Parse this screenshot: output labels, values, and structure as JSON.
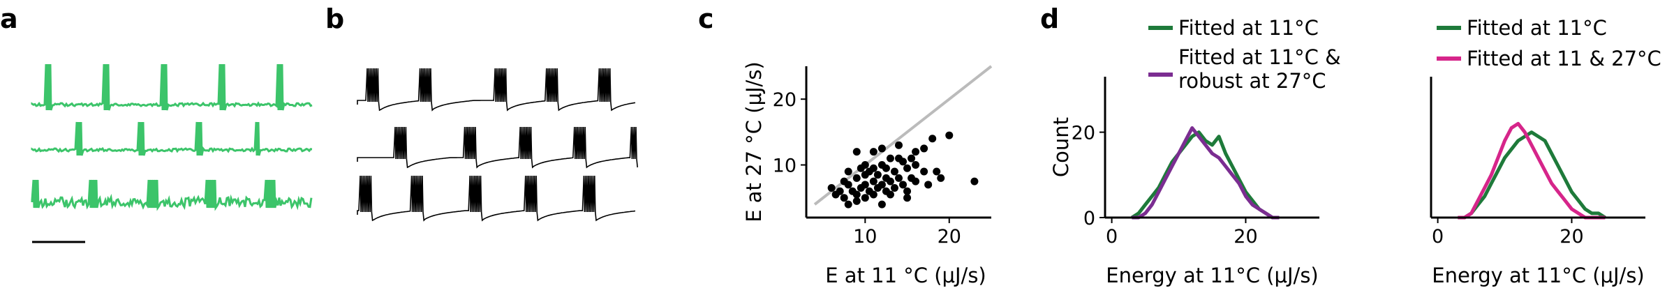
{
  "colors": {
    "trace_green": "#3cc46a",
    "dark_green": "#1e7a3a",
    "purple": "#7b2d91",
    "magenta": "#d6258a",
    "black": "#000000",
    "identity_line": "#bbbbbb"
  },
  "panels": {
    "a": {
      "label": "a"
    },
    "b": {
      "label": "b"
    },
    "c": {
      "label": "c"
    },
    "d": {
      "label": "d"
    }
  },
  "chart_data": [
    {
      "panel": "c",
      "type": "scatter",
      "xlabel": "E at 11 °C (μJ/s)",
      "ylabel": "E at 27 °C (μJ/s)",
      "xlim": [
        3,
        25
      ],
      "ylim": [
        2,
        25
      ],
      "xticks": [
        10,
        20
      ],
      "yticks": [
        10,
        20
      ],
      "identity_line": true,
      "points": [
        [
          6,
          6.5
        ],
        [
          7,
          6
        ],
        [
          7.5,
          5
        ],
        [
          8,
          7
        ],
        [
          8.5,
          6
        ],
        [
          9,
          5.5
        ],
        [
          9,
          8
        ],
        [
          9.5,
          6.5
        ],
        [
          10,
          7
        ],
        [
          10,
          5
        ],
        [
          10.5,
          9
        ],
        [
          10.5,
          6
        ],
        [
          11,
          7.5
        ],
        [
          11,
          5.5
        ],
        [
          11.5,
          8.5
        ],
        [
          11.5,
          6.5
        ],
        [
          12,
          7
        ],
        [
          12,
          10
        ],
        [
          12.5,
          6
        ],
        [
          12.5,
          8
        ],
        [
          13,
          7.5
        ],
        [
          13,
          5.5
        ],
        [
          13.5,
          9
        ],
        [
          13.5,
          6.5
        ],
        [
          14,
          8
        ],
        [
          14,
          11
        ],
        [
          14.5,
          7
        ],
        [
          15,
          9.5
        ],
        [
          15,
          6
        ],
        [
          15.5,
          8
        ],
        [
          16,
          7.5
        ],
        [
          16,
          10
        ],
        [
          17,
          9
        ],
        [
          17.5,
          7
        ],
        [
          18,
          14
        ],
        [
          19,
          8
        ],
        [
          20,
          14.5
        ],
        [
          23,
          7.5
        ],
        [
          9,
          12
        ],
        [
          11,
          12
        ],
        [
          8,
          9
        ],
        [
          10,
          10
        ],
        [
          12,
          12.5
        ],
        [
          14,
          13
        ],
        [
          16,
          12
        ],
        [
          15,
          5
        ],
        [
          12,
          4
        ],
        [
          9,
          4.5
        ],
        [
          6.5,
          5.5
        ],
        [
          8,
          4
        ],
        [
          11,
          9.5
        ],
        [
          13,
          11
        ],
        [
          17,
          12.5
        ],
        [
          18.5,
          9
        ],
        [
          14.5,
          10.5
        ],
        [
          10,
          8.5
        ],
        [
          12.5,
          9.5
        ],
        [
          15.5,
          11
        ],
        [
          9.5,
          9.5
        ],
        [
          7.5,
          7.5
        ]
      ]
    },
    {
      "panel": "d-left",
      "type": "line",
      "xlabel": "Energy at 11°C (μJ/s)",
      "ylabel": "Count",
      "xlim": [
        -1,
        31
      ],
      "ylim": [
        0,
        33
      ],
      "xticks": [
        0,
        20
      ],
      "yticks": [
        0,
        20
      ],
      "x": [
        3,
        4,
        5,
        6,
        7,
        8,
        9,
        10,
        11,
        12,
        13,
        14,
        15,
        16,
        17,
        18,
        19,
        20,
        21,
        22,
        23,
        24,
        25
      ],
      "series": [
        {
          "name": "Fitted at 11°C",
          "color": "dark_green",
          "values": [
            0,
            1,
            3,
            5,
            7,
            10,
            13,
            15,
            17,
            19,
            20,
            18,
            17,
            19,
            15,
            12,
            9,
            6,
            4,
            2,
            1,
            0,
            0
          ]
        },
        {
          "name": "Fitted at 11°C & robust at 27°C",
          "color": "purple",
          "values": [
            0,
            0,
            1,
            3,
            6,
            9,
            12,
            15,
            18,
            21,
            19,
            17,
            15,
            14,
            12,
            10,
            8,
            5,
            3,
            2,
            1,
            0,
            0
          ]
        }
      ]
    },
    {
      "panel": "d-right",
      "type": "line",
      "xlabel": "Energy at 11°C (μJ/s)",
      "ylabel": "",
      "xlim": [
        -1,
        31
      ],
      "ylim": [
        0,
        33
      ],
      "xticks": [
        0,
        20
      ],
      "yticks": [],
      "x": [
        3,
        4,
        5,
        6,
        7,
        8,
        9,
        10,
        11,
        12,
        13,
        14,
        15,
        16,
        17,
        18,
        19,
        20,
        21,
        22,
        23,
        24,
        25
      ],
      "series": [
        {
          "name": "Fitted at 11°C",
          "color": "dark_green",
          "values": [
            0,
            0,
            1,
            3,
            5,
            8,
            11,
            14,
            16,
            18,
            19,
            20,
            19,
            18,
            15,
            12,
            9,
            6,
            4,
            2,
            1,
            1,
            0
          ]
        },
        {
          "name": "Fitted at 11 & 27°C",
          "color": "magenta",
          "values": [
            0,
            0,
            1,
            4,
            7,
            10,
            14,
            18,
            21,
            22,
            20,
            17,
            14,
            11,
            8,
            6,
            4,
            2,
            1,
            0,
            0,
            0,
            0
          ]
        }
      ]
    }
  ]
}
